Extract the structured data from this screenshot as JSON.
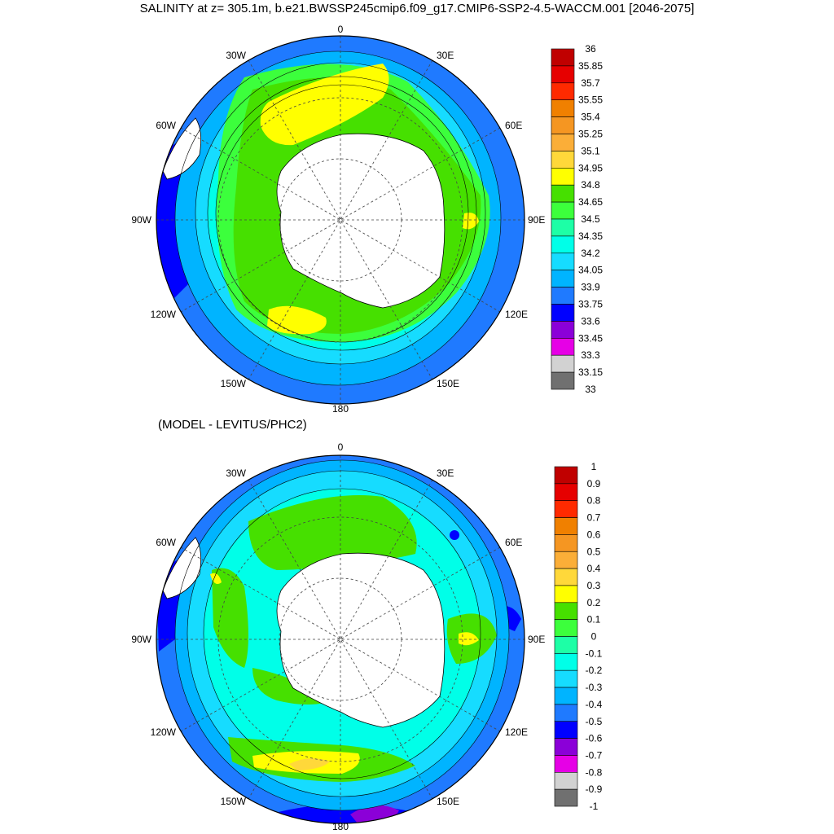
{
  "title": "SALINITY at z= 305.1m, b.e21.BWSSP245cmip6.f09_g17.CMIP6-SSP2-4.5-WACCM.001 [2046-2075]",
  "subtitle": "(MODEL - LEVITUS/PHC2)",
  "lon_labels": {
    "top": "0",
    "right": "90E",
    "bottom": "180",
    "left": "90W",
    "upper_left": "30W",
    "upper_right": "30E",
    "mid_left": "60W",
    "mid_right": "60E",
    "lower_left": "120W",
    "lower_right": "120E",
    "bottom_left": "150W",
    "bottom_right": "150E"
  },
  "colorbar_top": {
    "labels": [
      "36",
      "35.85",
      "35.7",
      "35.55",
      "35.4",
      "35.25",
      "35.1",
      "34.95",
      "34.8",
      "34.65",
      "34.5",
      "34.35",
      "34.2",
      "34.05",
      "33.9",
      "33.75",
      "33.6",
      "33.45",
      "33.3",
      "33.15",
      "33"
    ],
    "colors": [
      "#c00000",
      "#e60000",
      "#ff2a00",
      "#f08000",
      "#f59622",
      "#fbae38",
      "#ffd83a",
      "#ffff00",
      "#46e000",
      "#3cff3c",
      "#1dffa6",
      "#00ffe8",
      "#16dcff",
      "#00b4ff",
      "#1f7aff",
      "#0000ff",
      "#8b00d8",
      "#e600e6",
      "#d2d2d2",
      "#707070"
    ]
  },
  "colorbar_bottom": {
    "labels": [
      "1",
      "0.9",
      "0.8",
      "0.7",
      "0.6",
      "0.5",
      "0.4",
      "0.3",
      "0.2",
      "0.1",
      "0",
      "-0.1",
      "-0.2",
      "-0.3",
      "-0.4",
      "-0.5",
      "-0.6",
      "-0.7",
      "-0.8",
      "-0.9",
      "-1"
    ],
    "colors": [
      "#c00000",
      "#e60000",
      "#ff2a00",
      "#f08000",
      "#f59622",
      "#fbae38",
      "#ffd83a",
      "#ffff00",
      "#46e000",
      "#3cff3c",
      "#1dffa6",
      "#00ffe8",
      "#16dcff",
      "#00b4ff",
      "#1f7aff",
      "#0000ff",
      "#8b00d8",
      "#e600e6",
      "#d2d2d2",
      "#707070"
    ]
  }
}
